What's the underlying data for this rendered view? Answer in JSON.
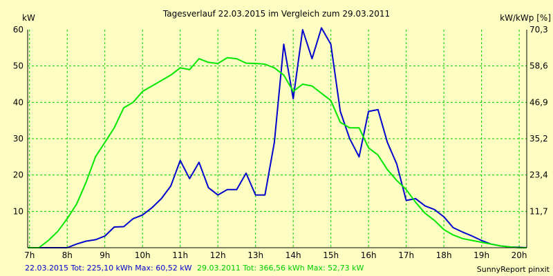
{
  "chart_data": {
    "type": "line",
    "title": "Tagesverlauf 22.03.2015 im Vergleich zum 29.03.2011",
    "left_unit": "kW",
    "right_unit": "kW/kWp [%]",
    "x_ticks": [
      "7h",
      "8h",
      "9h",
      "10h",
      "11h",
      "12h",
      "13h",
      "14h",
      "15h",
      "16h",
      "17h",
      "18h",
      "19h",
      "20h"
    ],
    "x_range": [
      6.95,
      20.2
    ],
    "y_left_ticks": [
      "10",
      "20",
      "30",
      "40",
      "50",
      "60"
    ],
    "y_left_range": [
      0,
      60
    ],
    "y_right_ticks": [
      "11,7",
      "23,4",
      "35,2",
      "46,9",
      "58,6",
      "70,3"
    ],
    "grid": true,
    "series": [
      {
        "name": "22.03.2015",
        "color": "#0000cc",
        "summary": "22.03.2015 Tot: 225,10 kWh Max: 60,52 kW",
        "points": [
          [
            6.95,
            0
          ],
          [
            7.5,
            0
          ],
          [
            8.0,
            0
          ],
          [
            8.25,
            1
          ],
          [
            8.5,
            1.8
          ],
          [
            8.75,
            2.2
          ],
          [
            9.0,
            3.2
          ],
          [
            9.25,
            5.7
          ],
          [
            9.5,
            5.8
          ],
          [
            9.75,
            8
          ],
          [
            10.0,
            9
          ],
          [
            10.25,
            11
          ],
          [
            10.5,
            13.5
          ],
          [
            10.75,
            17
          ],
          [
            11.0,
            24
          ],
          [
            11.25,
            19
          ],
          [
            11.5,
            23.5
          ],
          [
            11.75,
            16.5
          ],
          [
            12.0,
            14.5
          ],
          [
            12.25,
            16
          ],
          [
            12.5,
            16
          ],
          [
            12.75,
            20.5
          ],
          [
            13.0,
            14.5
          ],
          [
            13.25,
            14.5
          ],
          [
            13.5,
            29
          ],
          [
            13.75,
            56
          ],
          [
            14.0,
            41
          ],
          [
            14.25,
            60
          ],
          [
            14.5,
            52
          ],
          [
            14.75,
            60.5
          ],
          [
            15.0,
            56
          ],
          [
            15.25,
            37.5
          ],
          [
            15.5,
            30
          ],
          [
            15.75,
            25
          ],
          [
            16.0,
            37.5
          ],
          [
            16.25,
            38
          ],
          [
            16.5,
            29
          ],
          [
            16.75,
            23
          ],
          [
            17.0,
            13
          ],
          [
            17.25,
            13.5
          ],
          [
            17.5,
            11.5
          ],
          [
            17.75,
            10.5
          ],
          [
            18.0,
            8.5
          ],
          [
            18.25,
            5.5
          ],
          [
            18.5,
            4.3
          ],
          [
            18.75,
            3.2
          ],
          [
            19.0,
            2
          ],
          [
            19.25,
            1
          ],
          [
            19.5,
            0.5
          ],
          [
            19.75,
            0.2
          ],
          [
            20.0,
            0.1
          ],
          [
            20.2,
            0
          ]
        ]
      },
      {
        "name": "29.03.2011",
        "color": "#00e600",
        "summary": "29.03.2011 Tot: 366,56 kWh Max: 52,73 kW",
        "points": [
          [
            6.95,
            0
          ],
          [
            7.25,
            0
          ],
          [
            7.5,
            2
          ],
          [
            7.75,
            4.5
          ],
          [
            8.0,
            8
          ],
          [
            8.25,
            12
          ],
          [
            8.5,
            18
          ],
          [
            8.75,
            25
          ],
          [
            9.0,
            29
          ],
          [
            9.25,
            33
          ],
          [
            9.5,
            38.5
          ],
          [
            9.75,
            40
          ],
          [
            10.0,
            43
          ],
          [
            10.25,
            44.5
          ],
          [
            10.5,
            46
          ],
          [
            10.75,
            47.5
          ],
          [
            11.0,
            49.5
          ],
          [
            11.25,
            49
          ],
          [
            11.5,
            52
          ],
          [
            11.75,
            51
          ],
          [
            12.0,
            50.7
          ],
          [
            12.25,
            52.3
          ],
          [
            12.5,
            52
          ],
          [
            12.75,
            50.8
          ],
          [
            13.0,
            50.7
          ],
          [
            13.25,
            50.5
          ],
          [
            13.5,
            49.5
          ],
          [
            13.75,
            47.5
          ],
          [
            14.0,
            43
          ],
          [
            14.25,
            45
          ],
          [
            14.5,
            44.5
          ],
          [
            14.75,
            42.5
          ],
          [
            15.0,
            40.5
          ],
          [
            15.25,
            34.5
          ],
          [
            15.5,
            33
          ],
          [
            15.75,
            33
          ],
          [
            16.0,
            27.5
          ],
          [
            16.25,
            25.5
          ],
          [
            16.5,
            21.5
          ],
          [
            16.75,
            18.5
          ],
          [
            17.0,
            16
          ],
          [
            17.25,
            12.5
          ],
          [
            17.5,
            9.5
          ],
          [
            17.75,
            7.5
          ],
          [
            18.0,
            5
          ],
          [
            18.25,
            3.5
          ],
          [
            18.5,
            2.5
          ],
          [
            18.75,
            2
          ],
          [
            19.0,
            1.5
          ],
          [
            19.25,
            1
          ],
          [
            19.5,
            0.5
          ],
          [
            19.75,
            0.2
          ],
          [
            20.0,
            0
          ],
          [
            20.2,
            0
          ]
        ]
      }
    ]
  },
  "credit": "SunnyReport pinxit",
  "colors": {
    "background": "#fefec2",
    "grid": "#00cc00",
    "axis": "#000000"
  }
}
